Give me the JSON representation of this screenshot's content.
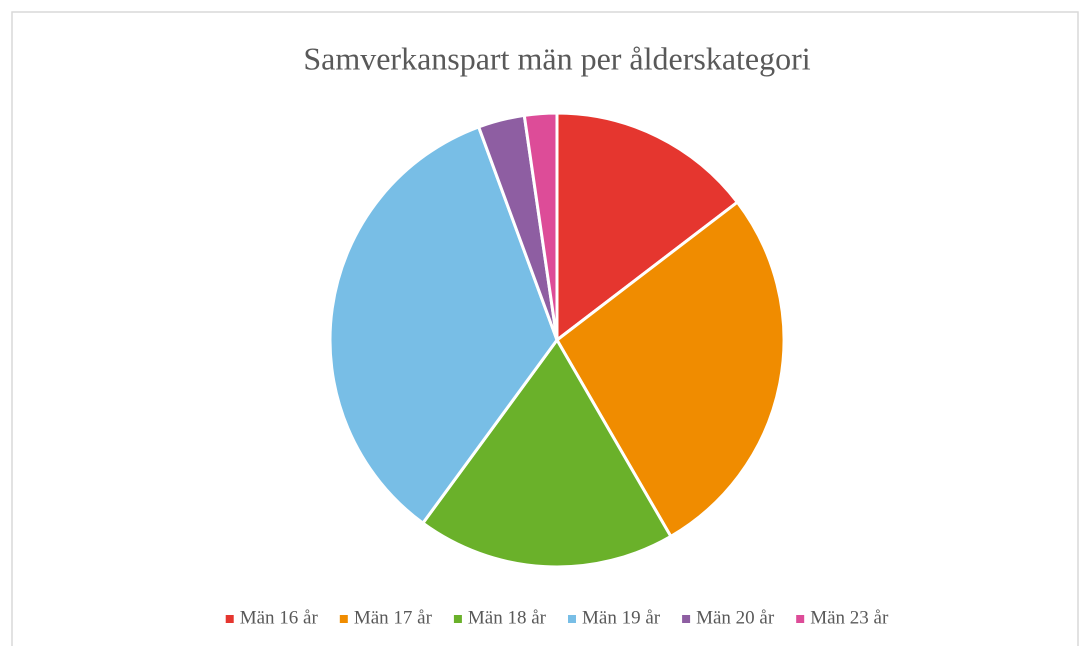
{
  "chart_data": {
    "type": "pie",
    "title": "Samverkanspart män per ålderskategori",
    "categories": [
      "Män 16 år",
      "Män 17 år",
      "Män 18 år",
      "Män 19 år",
      "Män 20 år",
      "Män 23 år"
    ],
    "values": [
      14.6,
      27.0,
      18.4,
      34.3,
      3.3,
      2.3
    ],
    "colors": [
      "#e5362f",
      "#f08c00",
      "#6ab12a",
      "#78bee6",
      "#8e5ea2",
      "#dd4c98"
    ],
    "legend": "bottom"
  }
}
